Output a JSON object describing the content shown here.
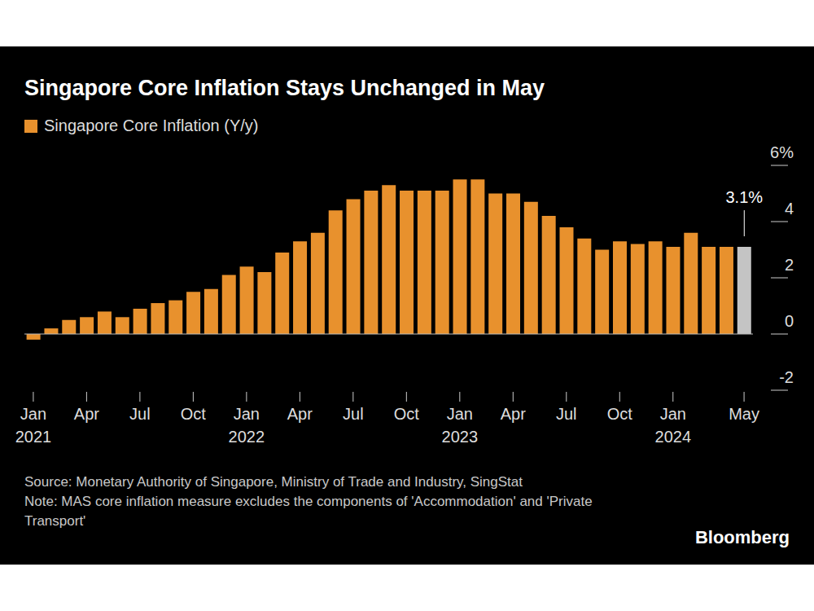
{
  "chart_data": {
    "type": "bar",
    "title": "Singapore Core Inflation Stays Unchanged in May",
    "categories": [
      "Jan 2021",
      null,
      null,
      "Apr",
      null,
      null,
      "Jul",
      null,
      null,
      "Oct",
      null,
      null,
      "Jan 2022",
      null,
      null,
      "Apr",
      null,
      null,
      "Jul",
      null,
      null,
      "Oct",
      null,
      null,
      "Jan 2023",
      null,
      null,
      "Apr",
      null,
      null,
      "Jul",
      null,
      null,
      "Oct",
      null,
      null,
      "Jan 2024",
      null,
      null,
      null,
      "May"
    ],
    "series": [
      {
        "name": "Singapore Core Inflation (Y/y)",
        "color": "#e8912d",
        "colors": [
          "#e8912d",
          "#e8912d",
          "#e8912d",
          "#e8912d",
          "#e8912d",
          "#e8912d",
          "#e8912d",
          "#e8912d",
          "#e8912d",
          "#e8912d",
          "#e8912d",
          "#e8912d",
          "#e8912d",
          "#e8912d",
          "#e8912d",
          "#e8912d",
          "#e8912d",
          "#e8912d",
          "#e8912d",
          "#e8912d",
          "#e8912d",
          "#e8912d",
          "#e8912d",
          "#e8912d",
          "#e8912d",
          "#e8912d",
          "#e8912d",
          "#e8912d",
          "#e8912d",
          "#e8912d",
          "#e8912d",
          "#e8912d",
          "#e8912d",
          "#e8912d",
          "#e8912d",
          "#e8912d",
          "#e8912d",
          "#e8912d",
          "#e8912d",
          "#e8912d",
          "#c4c4c4"
        ],
        "values": [
          -0.2,
          0.2,
          0.5,
          0.6,
          0.8,
          0.6,
          0.9,
          1.1,
          1.2,
          1.5,
          1.6,
          2.1,
          2.4,
          2.2,
          2.9,
          3.3,
          3.6,
          4.4,
          4.8,
          5.1,
          5.3,
          5.1,
          5.1,
          5.1,
          5.5,
          5.5,
          5.0,
          5.0,
          4.7,
          4.2,
          3.8,
          3.4,
          3.0,
          3.3,
          3.2,
          3.3,
          3.1,
          3.6,
          3.1,
          3.1,
          3.1
        ]
      }
    ],
    "annotation": {
      "text": "3.1%"
    },
    "ylim": [
      -2,
      6
    ],
    "yticks": [
      -2,
      0,
      2,
      4,
      {
        "value": 6,
        "label": "6%"
      }
    ],
    "grid": false,
    "source": "Source: Monetary Authority of Singapore, Ministry of Trade and Industry, SingStat",
    "note": "Note: MAS core inflation measure excludes the components of 'Accommodation' and 'Private Transport'",
    "branding": "Bloomberg"
  }
}
